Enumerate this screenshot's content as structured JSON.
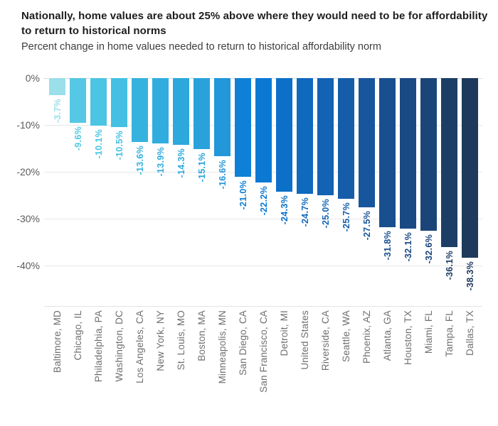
{
  "header": {
    "title_lines": [
      "Nationally, home values are about 25% above where they would need to be for affordability",
      "to return to historical norms"
    ],
    "subtitle": "Percent change in home values needed to return to historical affordability norm"
  },
  "chart_data": {
    "type": "bar",
    "orientation": "vertical",
    "title": "Nationally, home values are about 25% above where they would need to be for affordability to return to historical norms",
    "subtitle": "Percent change in home values needed to return to historical affordability norm",
    "xlabel": "",
    "ylabel": "",
    "ylim": [
      -48.5,
      0
    ],
    "grid": true,
    "legend": "none",
    "bar_label_rotation": -90,
    "x_label_rotation": -90,
    "yticks": [
      {
        "label": "0%",
        "value": 0
      },
      {
        "label": "-10%",
        "value": -10
      },
      {
        "label": "-20%",
        "value": -20
      },
      {
        "label": "-30%",
        "value": -30
      },
      {
        "label": "-40%",
        "value": -40
      }
    ],
    "categories": [
      "Baltimore, MD",
      "Chicago, IL",
      "Philadelphia, PA",
      "Washington, DC",
      "Los Angeles, CA",
      "New York, NY",
      "St. Louis, MO",
      "Boston, MA",
      "Minneapolis, MN",
      "San Diego, CA",
      "San Francisco, CA",
      "Detroit, MI",
      "United States",
      "Riverside, CA",
      "Seattle, WA",
      "Phoenix, AZ",
      "Atlanta, GA",
      "Houston, TX",
      "Miami, FL",
      "Tampa, FL",
      "Dallas, TX"
    ],
    "values": [
      -3.7,
      -9.6,
      -10.1,
      -10.5,
      -13.6,
      -13.9,
      -14.3,
      -15.1,
      -16.6,
      -21.0,
      -22.2,
      -24.3,
      -24.7,
      -25.0,
      -25.7,
      -27.5,
      -31.8,
      -32.1,
      -32.6,
      -36.1,
      -38.3
    ],
    "value_labels": [
      "-3.7%",
      "-9.6%",
      "-10.1%",
      "-10.5%",
      "-13.6%",
      "-13.9%",
      "-14.3%",
      "-15.1%",
      "-16.6%",
      "-21.0%",
      "-22.2%",
      "-24.3%",
      "-24.7%",
      "-25.0%",
      "-25.7%",
      "-27.5%",
      "-31.8%",
      "-32.1%",
      "-32.6%",
      "-36.1%",
      "-38.3%"
    ],
    "bar_colors": [
      "#9ADFEA",
      "#55C8E5",
      "#4CC4E3",
      "#45C0E2",
      "#36B2DF",
      "#30ADDE",
      "#2CA8DC",
      "#29A2DB",
      "#2297DA",
      "#0F80D7",
      "#0B79D4",
      "#0C70C8",
      "#0F69BD",
      "#1263B3",
      "#155DA9",
      "#17569C",
      "#194F8E",
      "#1A4A84",
      "#1B4579",
      "#1C3E66",
      "#1D395C"
    ],
    "grid_color": "#e7e7e7",
    "zero_line_color": "#bfbfbf",
    "ytick_label_color": "#5a5b5e",
    "xtick_label_color": "#6f6f71"
  }
}
